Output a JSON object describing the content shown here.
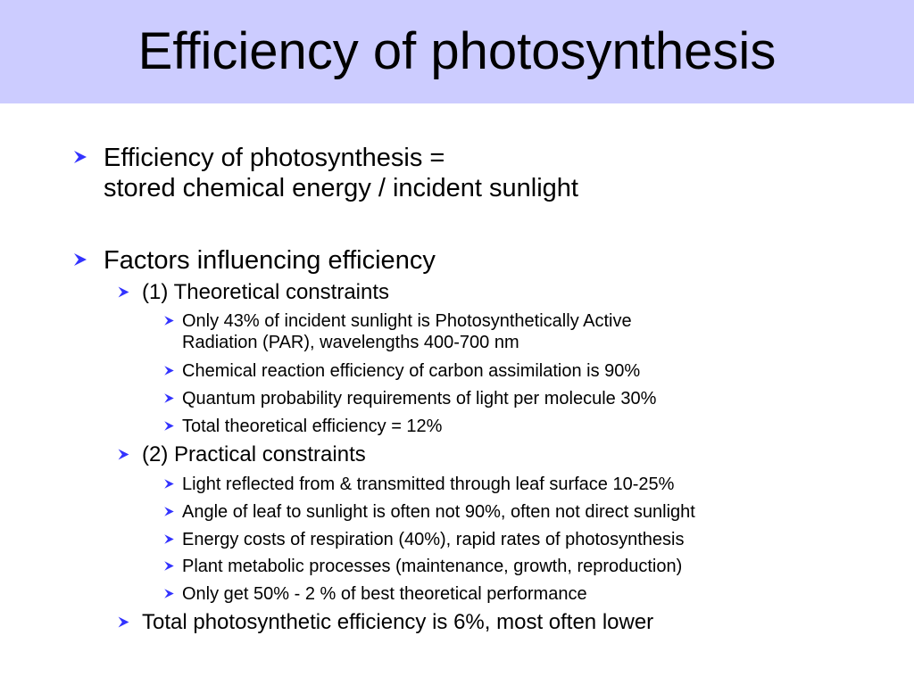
{
  "slide": {
    "title": "Efficiency of photosynthesis",
    "accent_color": "#3333ff",
    "title_band_color": "#ccccff",
    "bullets": [
      {
        "line1": "Efficiency of photosynthesis =",
        "line2": "stored chemical energy / incident sunlight"
      },
      {
        "text": "Factors influencing efficiency"
      }
    ],
    "theoretical": {
      "heading": "(1) Theoretical constraints",
      "items": [
        {
          "line1": "Only 43% of incident sunlight is Photosynthetically Active",
          "line2": "Radiation (PAR), wavelengths 400-700 nm"
        },
        {
          "text": "Chemical reaction efficiency of carbon assimilation is 90%"
        },
        {
          "text": "Quantum probability requirements of light per molecule 30%"
        },
        {
          "text": "Total theoretical efficiency = 12%"
        }
      ]
    },
    "practical": {
      "heading": "(2) Practical constraints",
      "items": [
        {
          "text": "Light reflected from & transmitted through leaf surface 10-25%"
        },
        {
          "text": "Angle of leaf to sunlight is often not 90%, often not direct sunlight"
        },
        {
          "text": "Energy costs of respiration (40%), rapid rates of photosynthesis"
        },
        {
          "text": "Plant metabolic processes (maintenance, growth, reproduction)"
        },
        {
          "text": "Only get 50% - 2 % of best theoretical performance"
        }
      ]
    },
    "total": "Total photosynthetic efficiency is 6%, most often lower"
  }
}
